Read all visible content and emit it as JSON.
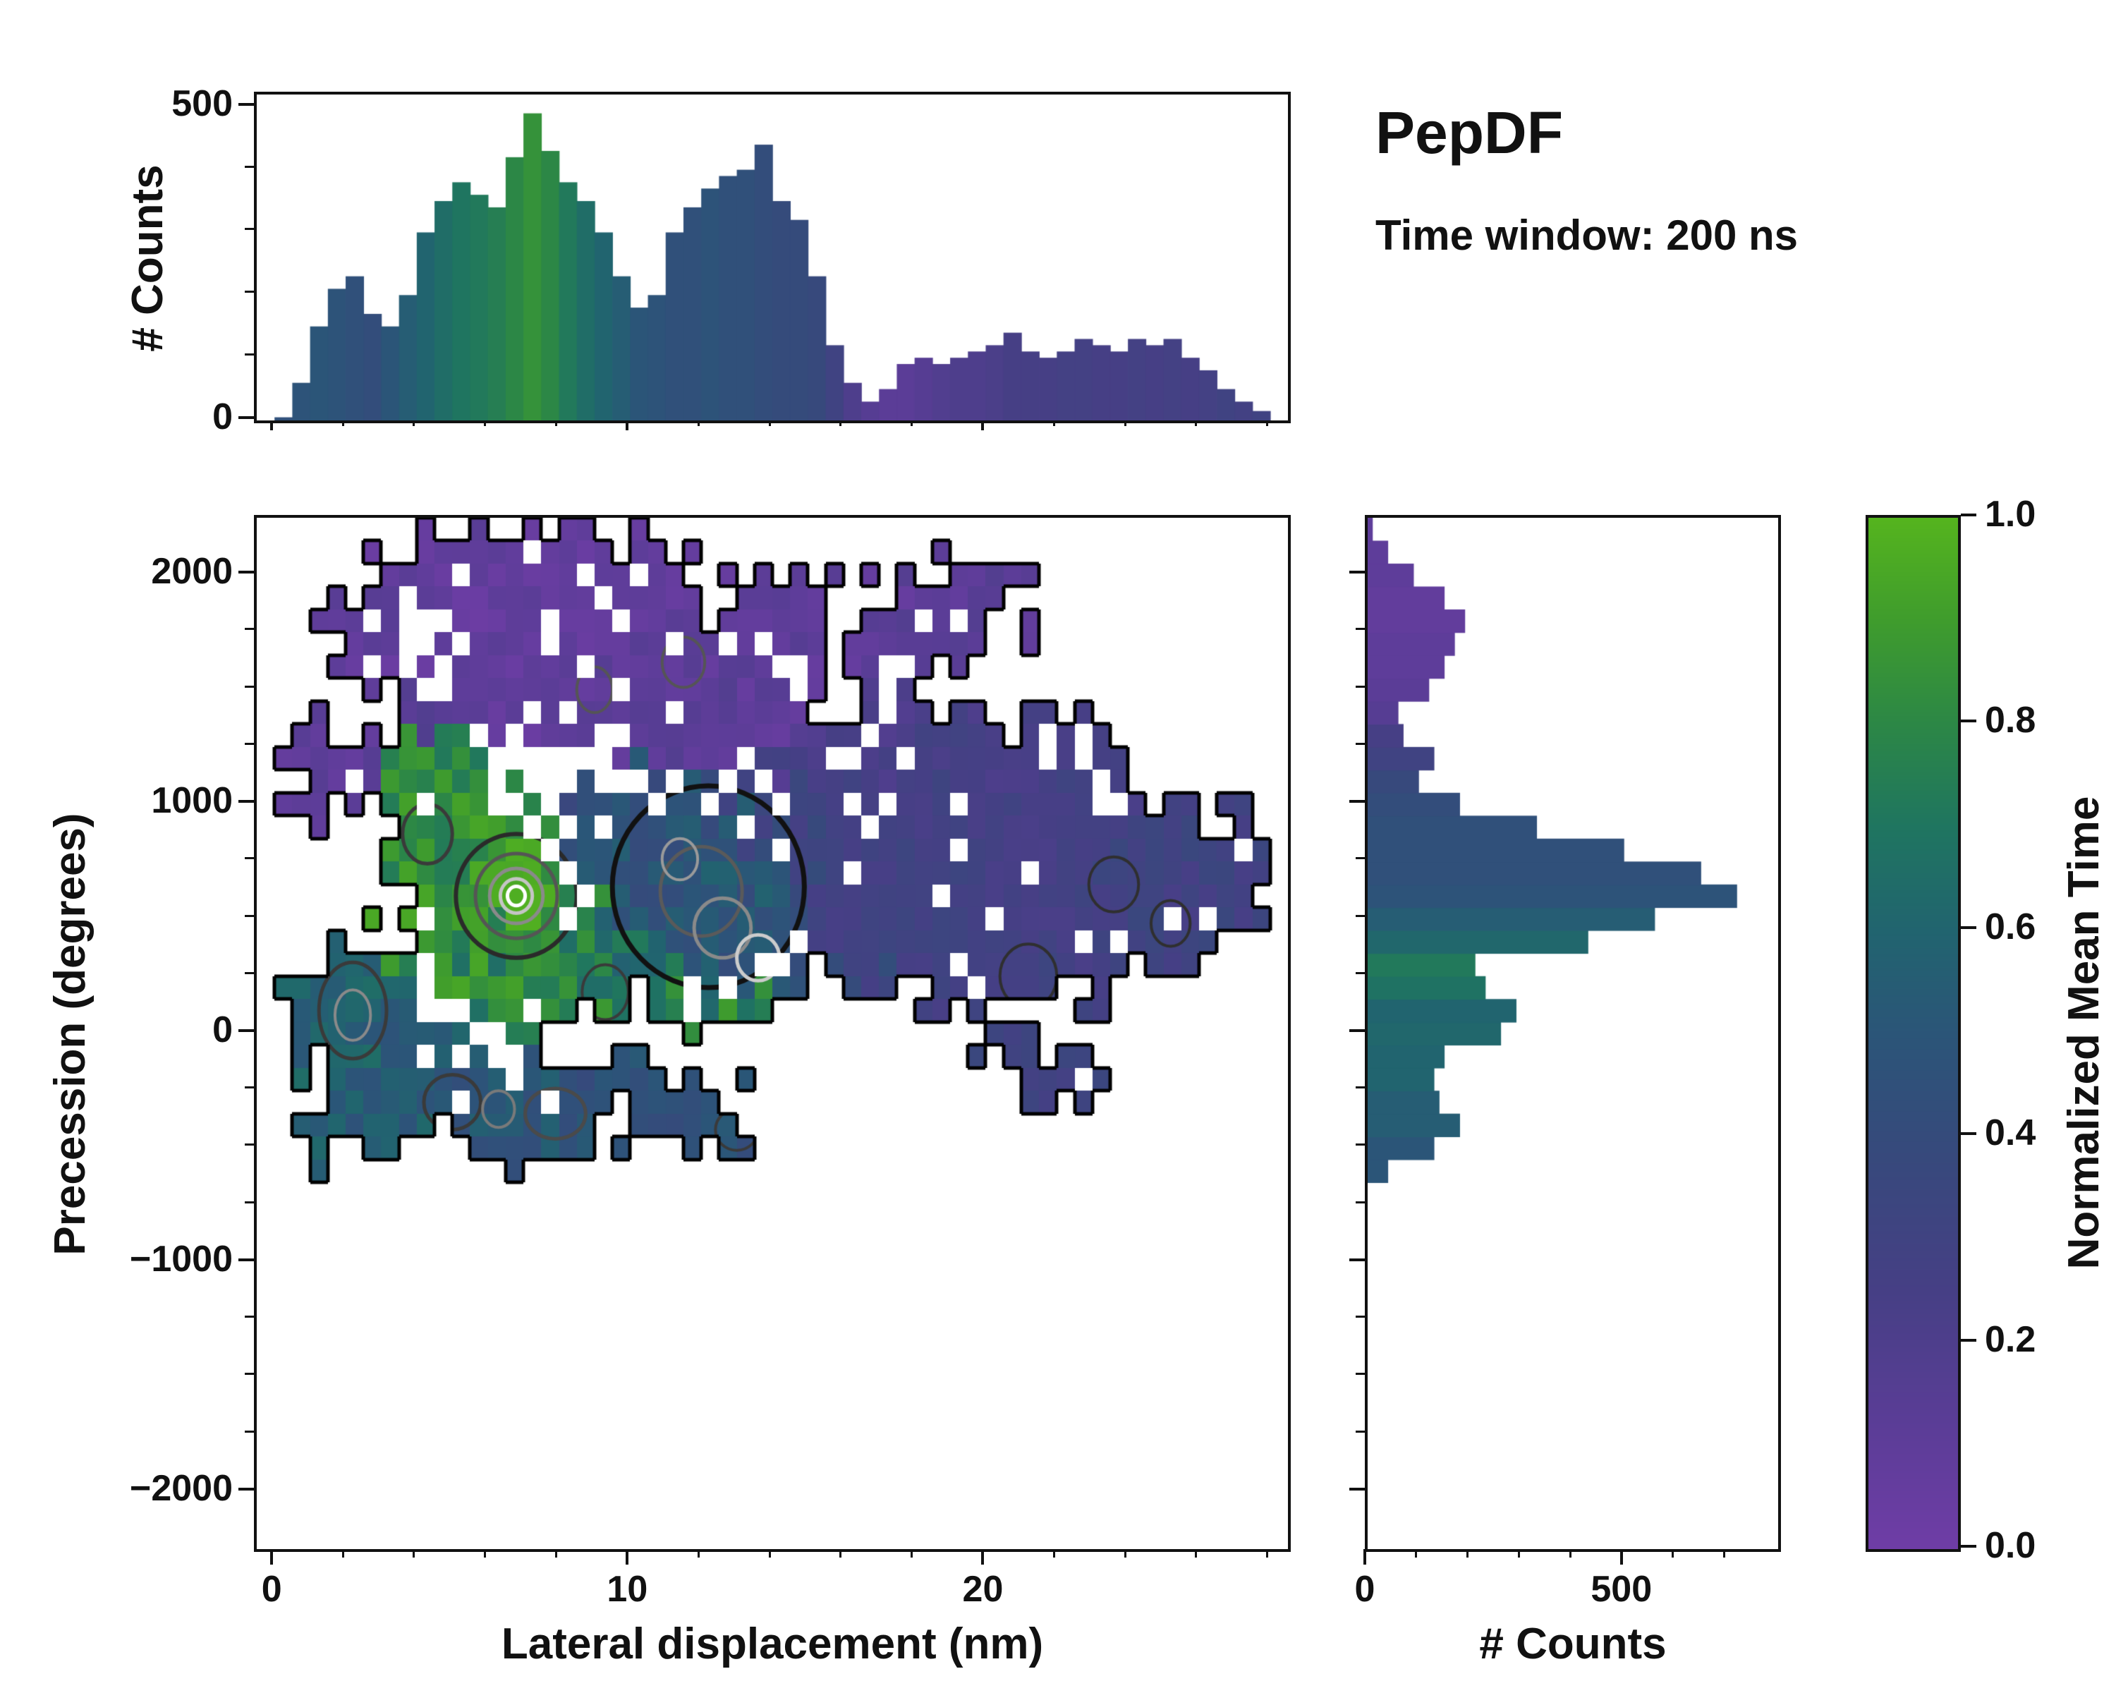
{
  "header": {
    "title": "PepDF",
    "subtitle": "Time window: 200 ns"
  },
  "colormap": {
    "stops": [
      [
        0.0,
        "#6f3da6"
      ],
      [
        0.12,
        "#5b3d97"
      ],
      [
        0.25,
        "#463f85"
      ],
      [
        0.38,
        "#37497c"
      ],
      [
        0.5,
        "#2b5578"
      ],
      [
        0.6,
        "#21646f"
      ],
      [
        0.7,
        "#1f7560"
      ],
      [
        0.8,
        "#2c8746"
      ],
      [
        0.9,
        "#3f9c2d"
      ],
      [
        1.0,
        "#55b41e"
      ]
    ]
  },
  "colorbar_axes": {
    "label": "Normalized Mean Time",
    "ticks": [
      {
        "v": 0,
        "t": "0.0"
      },
      {
        "v": 0.2,
        "t": "0.2"
      },
      {
        "v": 0.4,
        "t": "0.4"
      },
      {
        "v": 0.6,
        "t": "0.6"
      },
      {
        "v": 0.8,
        "t": "0.8"
      },
      {
        "v": 1,
        "t": "1.0"
      }
    ]
  },
  "main_axes": {
    "xlabel": "Lateral displacement (nm)",
    "ylabel": "Precession (degrees)",
    "xlim": [
      -0.5,
      28.5
    ],
    "ylim": [
      -2250,
      2250
    ],
    "xticks": [
      {
        "v": 0,
        "t": "0"
      },
      {
        "v": 10,
        "t": "10"
      },
      {
        "v": 20,
        "t": "20"
      }
    ],
    "xminor": [
      2,
      4,
      6,
      8,
      12,
      14,
      16,
      18,
      22,
      24,
      26,
      28
    ],
    "yticks": [
      {
        "v": -2000,
        "t": "−2000"
      },
      {
        "v": -1000,
        "t": "−1000"
      },
      {
        "v": 0,
        "t": "0"
      },
      {
        "v": 1000,
        "t": "1000"
      },
      {
        "v": 2000,
        "t": "2000"
      }
    ],
    "yminor": [
      -1750,
      -1500,
      -1250,
      -750,
      -500,
      -250,
      250,
      500,
      750,
      1250,
      1500,
      1750
    ]
  },
  "top_axes": {
    "ylabel": "# Counts",
    "ylim": [
      0,
      520
    ],
    "yticks": [
      {
        "v": 0,
        "t": "0"
      },
      {
        "v": 500,
        "t": "500"
      }
    ],
    "yminor": [
      100,
      200,
      300,
      400
    ]
  },
  "right_axes": {
    "xlabel": "# Counts",
    "xlim": [
      0,
      800
    ],
    "xticks": [
      {
        "v": 0,
        "t": "0"
      },
      {
        "v": 500,
        "t": "500"
      }
    ],
    "xminor": [
      100,
      200,
      300,
      400,
      600,
      700
    ]
  },
  "chart_data": [
    {
      "id": "top_histogram",
      "type": "bar",
      "title": "",
      "xlabel": "Lateral displacement (nm)",
      "ylabel": "# Counts",
      "x_start": 0,
      "x_bin_width_nm": 0.5,
      "ylim": [
        0,
        520
      ],
      "values": [
        5,
        60,
        150,
        210,
        230,
        170,
        150,
        200,
        300,
        350,
        380,
        360,
        340,
        420,
        490,
        430,
        380,
        350,
        300,
        230,
        180,
        200,
        300,
        340,
        370,
        390,
        400,
        440,
        350,
        320,
        230,
        120,
        60,
        30,
        50,
        90,
        100,
        90,
        100,
        110,
        120,
        140,
        110,
        100,
        110,
        130,
        120,
        110,
        130,
        120,
        130,
        100,
        80,
        50,
        30,
        15
      ],
      "color_values": [
        0.45,
        0.48,
        0.5,
        0.48,
        0.45,
        0.42,
        0.5,
        0.55,
        0.6,
        0.65,
        0.7,
        0.72,
        0.75,
        0.8,
        0.85,
        0.8,
        0.72,
        0.65,
        0.6,
        0.55,
        0.5,
        0.48,
        0.45,
        0.45,
        0.48,
        0.45,
        0.45,
        0.42,
        0.4,
        0.4,
        0.38,
        0.3,
        0.2,
        0.15,
        0.12,
        0.12,
        0.15,
        0.18,
        0.2,
        0.2,
        0.22,
        0.25,
        0.25,
        0.25,
        0.27,
        0.27,
        0.25,
        0.25,
        0.27,
        0.25,
        0.27,
        0.25,
        0.27,
        0.3,
        0.28,
        0.3
      ]
    },
    {
      "id": "main_density",
      "type": "heatmap",
      "xlabel": "Lateral displacement (nm)",
      "ylabel": "Precession (degrees)",
      "color_meaning": "Normalized Mean Time",
      "xlim": [
        -0.5,
        28.5
      ],
      "ylim": [
        -2250,
        2250
      ],
      "cell": {
        "dx": 0.5,
        "dy": 100
      },
      "seed": 12345,
      "cluster_fields": [
        "cx_nm",
        "cy_deg",
        "rx_nm",
        "ry_deg",
        "mean_time",
        "spread",
        "fill_prob"
      ],
      "clusters": [
        [
          6,
          1750,
          4.5,
          450,
          0.08,
          0.06,
          0.8
        ],
        [
          11,
          1550,
          4,
          350,
          0.1,
          0.05,
          0.75
        ],
        [
          9,
          2000,
          3,
          220,
          0.07,
          0.04,
          0.7
        ],
        [
          15,
          1800,
          3,
          300,
          0.1,
          0.05,
          0.7
        ],
        [
          19,
          1850,
          2.5,
          250,
          0.12,
          0.05,
          0.65
        ],
        [
          1.5,
          1150,
          1.5,
          250,
          0.1,
          0.05,
          0.8
        ],
        [
          4,
          1300,
          1.6,
          220,
          0.15,
          0.05,
          0.6
        ],
        [
          13,
          1300,
          2,
          250,
          0.12,
          0.05,
          0.6
        ],
        [
          4.5,
          1100,
          1.8,
          260,
          0.8,
          0.12,
          0.85
        ],
        [
          5.5,
          650,
          2.8,
          500,
          0.85,
          0.12,
          0.95
        ],
        [
          7.5,
          250,
          2.5,
          300,
          0.8,
          0.15,
          0.9
        ],
        [
          10,
          350,
          2.2,
          300,
          0.7,
          0.15,
          0.85
        ],
        [
          12.5,
          150,
          1.8,
          230,
          0.75,
          0.15,
          0.8
        ],
        [
          10.5,
          900,
          2.5,
          300,
          0.45,
          0.1,
          0.85
        ],
        [
          12,
          650,
          2.5,
          360,
          0.48,
          0.08,
          0.95
        ],
        [
          13.5,
          450,
          2,
          300,
          0.5,
          0.1,
          0.9
        ],
        [
          14,
          1000,
          2,
          260,
          0.33,
          0.08,
          0.8
        ],
        [
          16.5,
          550,
          2,
          380,
          0.35,
          0.08,
          0.85
        ],
        [
          19,
          700,
          4,
          560,
          0.28,
          0.05,
          0.85
        ],
        [
          23,
          600,
          3.5,
          460,
          0.27,
          0.05,
          0.8
        ],
        [
          25.5,
          700,
          2.5,
          400,
          0.3,
          0.06,
          0.75
        ],
        [
          21,
          1150,
          3,
          300,
          0.25,
          0.05,
          0.7
        ],
        [
          17,
          1250,
          2,
          260,
          0.22,
          0.05,
          0.65
        ],
        [
          21.5,
          -150,
          2,
          220,
          0.3,
          0.05,
          0.7
        ],
        [
          2,
          50,
          1.8,
          360,
          0.58,
          0.08,
          0.9
        ],
        [
          4,
          -250,
          2.2,
          300,
          0.55,
          0.08,
          0.9
        ],
        [
          7,
          -350,
          2.5,
          230,
          0.5,
          0.08,
          0.9
        ],
        [
          10,
          -300,
          2,
          200,
          0.45,
          0.08,
          0.85
        ],
        [
          12.5,
          -350,
          1.6,
          190,
          0.45,
          0.08,
          0.8
        ],
        [
          1.5,
          -480,
          1.2,
          160,
          0.55,
          0.08,
          0.8
        ],
        [
          6.8,
          600,
          0.9,
          140,
          0.97,
          0.03,
          1.0
        ]
      ],
      "ring_fields": [
        "cx_nm",
        "cy_deg",
        "rx_nm",
        "ry_deg",
        "color",
        "line_width"
      ],
      "contour_rings": [
        [
          12.2,
          640,
          2.7,
          440,
          "#111111",
          7
        ],
        [
          6.8,
          600,
          1.7,
          270,
          "#2a2a2a",
          6
        ],
        [
          6.8,
          600,
          1.15,
          185,
          "#555555",
          5
        ],
        [
          6.8,
          600,
          0.75,
          120,
          "#8a8a8a",
          5
        ],
        [
          6.8,
          600,
          0.45,
          75,
          "#c5c5c5",
          5
        ],
        [
          6.8,
          600,
          0.25,
          42,
          "#ffffff",
          5
        ],
        [
          12,
          620,
          1.15,
          195,
          "#5a5a5a",
          5
        ],
        [
          12.6,
          460,
          0.8,
          130,
          "#8a8a8a",
          5
        ],
        [
          13.6,
          330,
          0.6,
          100,
          "#cccccc",
          5
        ],
        [
          11.4,
          760,
          0.5,
          90,
          "#9a9a9a",
          4
        ],
        [
          2.2,
          100,
          0.95,
          210,
          "#3a3a3a",
          5
        ],
        [
          2.2,
          80,
          0.5,
          110,
          "#8a8a8a",
          4
        ],
        [
          4.3,
          870,
          0.7,
          130,
          "#3a3a3a",
          5
        ],
        [
          9.3,
          180,
          0.65,
          120,
          "#3a3a3a",
          4
        ],
        [
          5.0,
          -300,
          0.8,
          120,
          "#3a3a3a",
          5
        ],
        [
          6.3,
          -330,
          0.45,
          80,
          "#7a7a7a",
          4
        ],
        [
          7.9,
          -350,
          0.85,
          110,
          "#4a4a4a",
          5
        ],
        [
          13.0,
          -420,
          0.6,
          90,
          "#3a3a3a",
          4
        ],
        [
          21.2,
          250,
          0.8,
          140,
          "#2f2f2f",
          4
        ],
        [
          23.6,
          650,
          0.7,
          120,
          "#2f2f2f",
          4
        ],
        [
          25.2,
          480,
          0.55,
          100,
          "#2f2f2f",
          4
        ],
        [
          11.5,
          1620,
          0.6,
          110,
          "#555555",
          4
        ],
        [
          9.0,
          1500,
          0.5,
          100,
          "#555555",
          4
        ]
      ],
      "peak": {
        "x_nm": 6.8,
        "y_deg": 600
      }
    },
    {
      "id": "right_histogram",
      "type": "bar",
      "orientation": "horizontal",
      "xlabel": "# Counts",
      "ylabel": "Precession (degrees)",
      "y_start": -2250,
      "y_bin_width_deg": 100,
      "xlim": [
        0,
        800
      ],
      "values": [
        0,
        0,
        0,
        0,
        0,
        0,
        0,
        0,
        0,
        0,
        0,
        0,
        0,
        0,
        0,
        0,
        40,
        130,
        180,
        140,
        130,
        150,
        260,
        290,
        230,
        210,
        430,
        560,
        720,
        650,
        500,
        330,
        180,
        100,
        130,
        70,
        60,
        120,
        150,
        170,
        190,
        150,
        90,
        40,
        10
      ],
      "color_values": [
        0.5,
        0.5,
        0.5,
        0.5,
        0.5,
        0.5,
        0.5,
        0.5,
        0.5,
        0.5,
        0.5,
        0.5,
        0.5,
        0.5,
        0.5,
        0.5,
        0.5,
        0.5,
        0.55,
        0.55,
        0.6,
        0.6,
        0.62,
        0.6,
        0.68,
        0.72,
        0.62,
        0.55,
        0.48,
        0.45,
        0.45,
        0.45,
        0.42,
        0.38,
        0.3,
        0.25,
        0.15,
        0.12,
        0.1,
        0.1,
        0.08,
        0.08,
        0.1,
        0.1,
        0.1
      ]
    }
  ]
}
